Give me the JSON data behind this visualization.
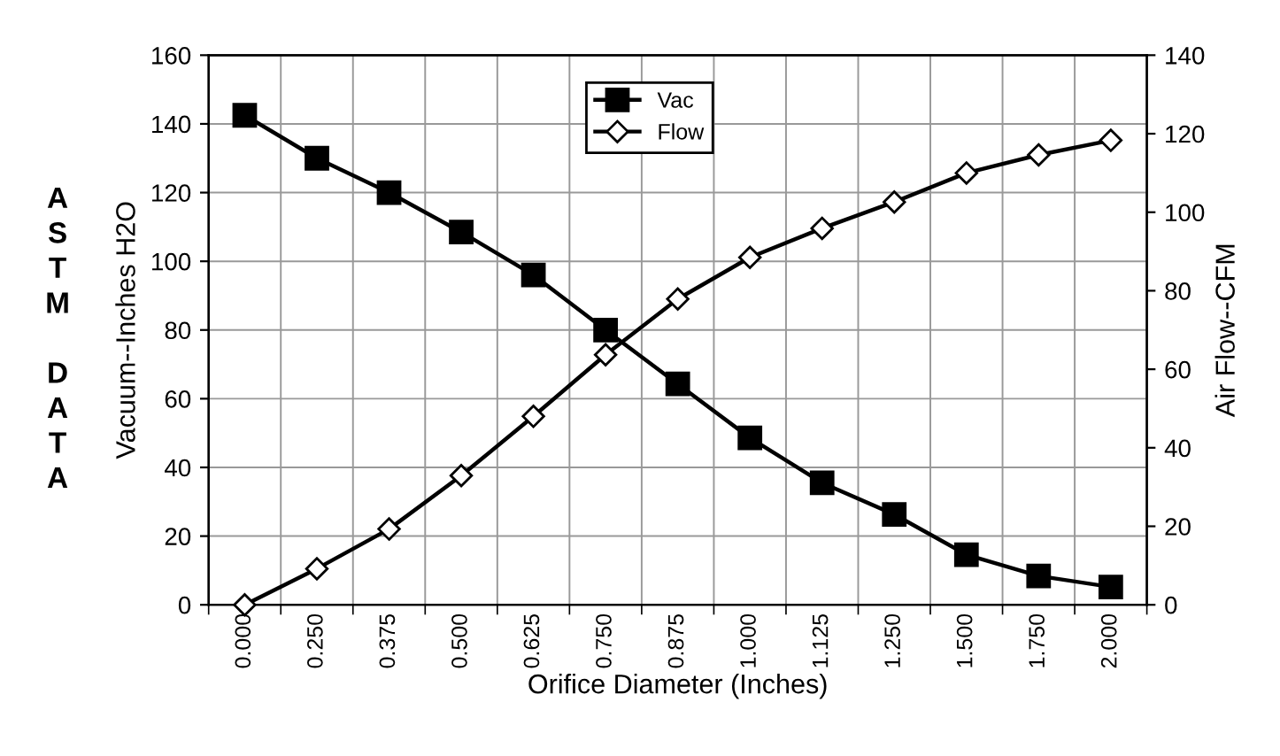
{
  "chart_data": {
    "type": "line",
    "xlabel": "Orifice Diameter (Inches)",
    "ylabel": "Vacuum--Inches H2O",
    "y2label": "Air Flow--CFM",
    "annotations": [
      "A\nS\nT\nM\n\nD\nA\nT\nA"
    ],
    "categories": [
      "0.000",
      "0.250",
      "0.375",
      "0.500",
      "0.625",
      "0.750",
      "0.875",
      "1.000",
      "1.125",
      "1.250",
      "1.500",
      "1.750",
      "2.000"
    ],
    "series": [
      {
        "name": "Vac",
        "color": "#000000",
        "marker": "square",
        "values": [
          142.5,
          130,
          120,
          108.5,
          96,
          80,
          64.3,
          48.6,
          35.5,
          26.3,
          14.6,
          8.4,
          5.2
        ]
      },
      {
        "name": "Flow",
        "color": "#000000",
        "marker": "diamond",
        "axis": "y2",
        "values": [
          0,
          9.2,
          19.3,
          32.9,
          48,
          63.7,
          77.9,
          88.5,
          95.9,
          102.6,
          110,
          114.6,
          118.3
        ]
      }
    ],
    "ylim": [
      0,
      160
    ],
    "yticks": [
      0,
      20,
      40,
      60,
      80,
      100,
      120,
      140,
      160
    ],
    "y2lim": [
      0,
      140
    ],
    "y2ticks": [
      0,
      20,
      40,
      60,
      80,
      100,
      120,
      140
    ],
    "grid": true,
    "legend": "top",
    "line_style": "solid"
  }
}
